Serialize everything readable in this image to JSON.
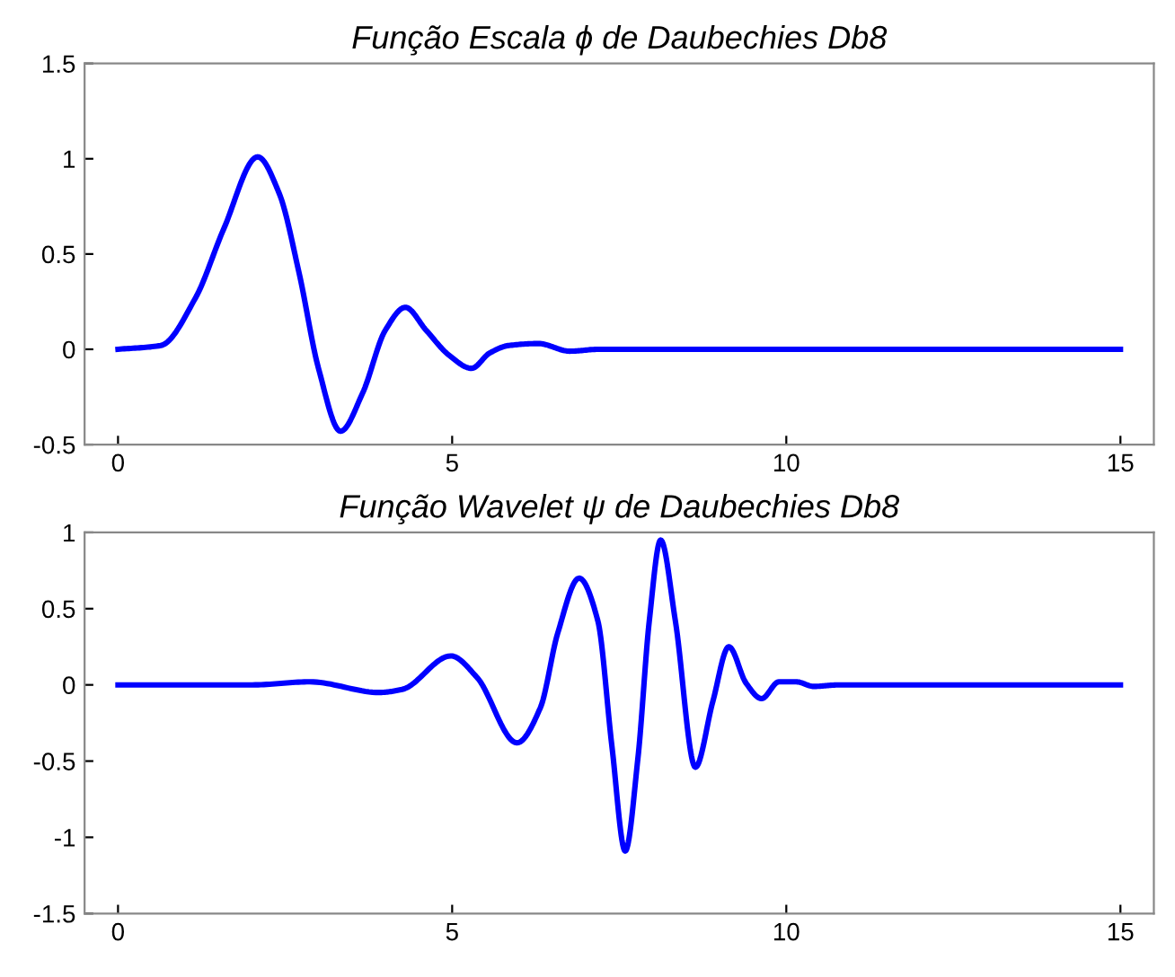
{
  "chart_data": [
    {
      "type": "line",
      "title": "Função Escala ϕ de Daubechies Db8",
      "x": [
        0,
        0.64,
        1.16,
        1.58,
        2.09,
        2.41,
        2.71,
        3.0,
        3.33,
        3.66,
        4.0,
        4.3,
        4.61,
        4.95,
        5.29,
        5.56,
        5.85,
        6.29,
        6.76,
        7.2,
        10,
        15
      ],
      "series": [
        {
          "color": "#0000ff",
          "values": [
            0,
            0.02,
            0.27,
            0.63,
            1.01,
            0.82,
            0.4,
            -0.1,
            -0.43,
            -0.23,
            0.1,
            0.22,
            0.1,
            -0.03,
            -0.1,
            -0.02,
            0.02,
            0.03,
            -0.01,
            0,
            0,
            0
          ]
        }
      ],
      "xlim": [
        -0.5,
        15.5
      ],
      "xticks": [
        0,
        5,
        10,
        15
      ],
      "ylim": [
        -0.5,
        1.5
      ],
      "yticks": [
        -0.5,
        0,
        0.5,
        1,
        1.5
      ],
      "grid": false,
      "legend": false
    },
    {
      "type": "line",
      "title": "Função Wavelet ψ de Daubechies Db8",
      "x": [
        0,
        2.01,
        2.87,
        3.91,
        4.25,
        4.98,
        5.37,
        5.97,
        6.32,
        6.58,
        6.9,
        7.18,
        7.39,
        7.59,
        7.78,
        7.95,
        8.12,
        8.34,
        8.64,
        8.9,
        9.14,
        9.4,
        9.63,
        9.89,
        10.15,
        10.41,
        10.8,
        15
      ],
      "series": [
        {
          "color": "#0000ff",
          "values": [
            0,
            0,
            0.02,
            -0.05,
            -0.03,
            0.19,
            0.05,
            -0.38,
            -0.15,
            0.34,
            0.7,
            0.42,
            -0.4,
            -1.09,
            -0.48,
            0.42,
            0.95,
            0.42,
            -0.54,
            -0.11,
            0.25,
            0.01,
            -0.09,
            0.02,
            0.02,
            -0.01,
            0,
            0
          ]
        }
      ],
      "xlim": [
        -0.5,
        15.5
      ],
      "xticks": [
        0,
        5,
        10,
        15
      ],
      "ylim": [
        -1.5,
        1
      ],
      "yticks": [
        -1.5,
        -1,
        -0.5,
        0,
        0.5,
        1
      ],
      "grid": false,
      "legend": false
    }
  ]
}
